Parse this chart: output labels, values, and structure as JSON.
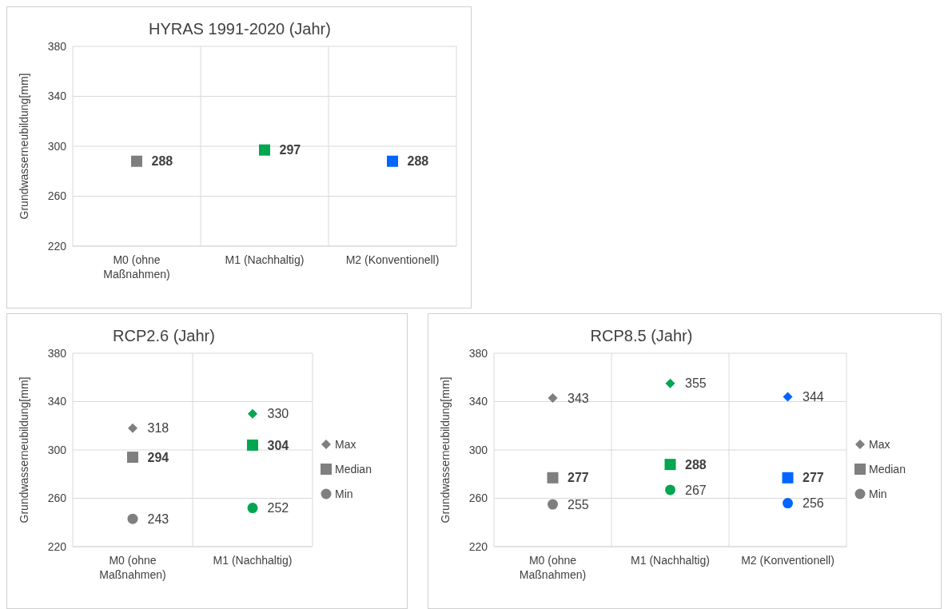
{
  "chart_data": [
    {
      "type": "scatter",
      "title": "HYRAS 1991-2020 (Jahr)",
      "ylabel": "Grundwasserneubildung[mm]",
      "categories": [
        "M0 (ohne Maßnahmen)",
        "M1 (Nachhaltig)",
        "M2 (Konventionell)"
      ],
      "ylim": [
        220,
        380
      ],
      "yticks": [
        220,
        260,
        300,
        340,
        380
      ],
      "grid": true,
      "legend": false,
      "data_labels": true,
      "series": [
        {
          "colors": [
            "#7f7f7f",
            "#00a650",
            "#0066ff"
          ],
          "marker": "square",
          "values": [
            288,
            297,
            288
          ]
        }
      ]
    },
    {
      "type": "scatter",
      "title": "RCP2.6 (Jahr)",
      "ylabel": "Grundwasserneubildung[mm]",
      "categories": [
        "M0 (ohne Maßnahmen)",
        "M1 (Nachhaltig)"
      ],
      "ylim": [
        220,
        380
      ],
      "yticks": [
        220,
        260,
        300,
        340,
        380
      ],
      "grid": true,
      "legend": "right",
      "data_labels": true,
      "series": [
        {
          "name": "Max",
          "color": "#7f7f7f",
          "colors": [
            "#7f7f7f",
            "#00a650"
          ],
          "marker": "diamond",
          "values": [
            318,
            330
          ]
        },
        {
          "name": "Median",
          "color": "#7f7f7f",
          "colors": [
            "#7f7f7f",
            "#00a650"
          ],
          "marker": "square",
          "values": [
            294,
            304
          ]
        },
        {
          "name": "Min",
          "color": "#7f7f7f",
          "colors": [
            "#7f7f7f",
            "#00a650"
          ],
          "marker": "circle",
          "values": [
            243,
            252
          ]
        }
      ]
    },
    {
      "type": "scatter",
      "title": "RCP8.5 (Jahr)",
      "ylabel": "Grundwasserneubildung[mm]",
      "categories": [
        "M0 (ohne Maßnahmen)",
        "M1 (Nachhaltig)",
        "M2 (Konventionell)"
      ],
      "ylim": [
        220,
        380
      ],
      "yticks": [
        220,
        260,
        300,
        340,
        380
      ],
      "grid": true,
      "legend": "right",
      "data_labels": true,
      "series": [
        {
          "name": "Max",
          "color": "#7f7f7f",
          "colors": [
            "#7f7f7f",
            "#00a650",
            "#0066ff"
          ],
          "marker": "diamond",
          "values": [
            343,
            355,
            344
          ]
        },
        {
          "name": "Median",
          "color": "#7f7f7f",
          "colors": [
            "#7f7f7f",
            "#00a650",
            "#0066ff"
          ],
          "marker": "square",
          "values": [
            277,
            288,
            277
          ]
        },
        {
          "name": "Min",
          "color": "#7f7f7f",
          "colors": [
            "#7f7f7f",
            "#00a650",
            "#0066ff"
          ],
          "marker": "circle",
          "values": [
            255,
            267,
            256
          ]
        }
      ]
    }
  ]
}
